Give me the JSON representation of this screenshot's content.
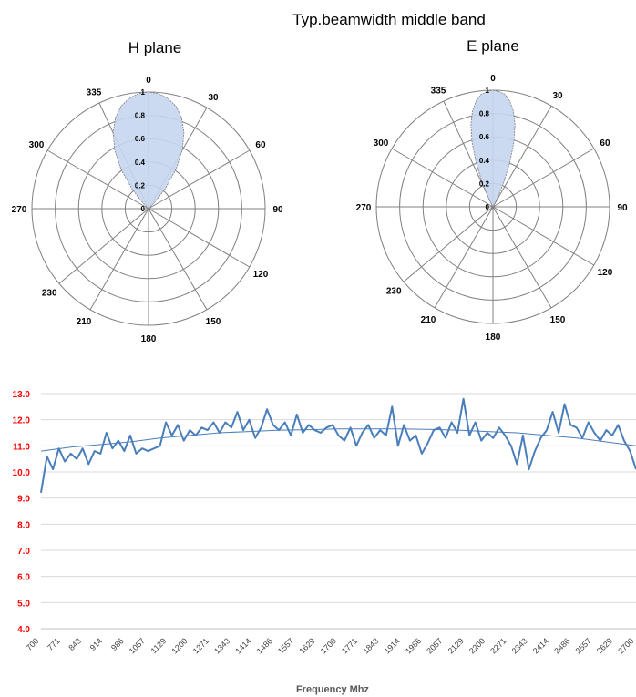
{
  "title": "Typ.beamwidth  middle band",
  "chart_data": [
    {
      "type": "polar",
      "title": "H plane",
      "angle_labels": [
        "0",
        "30",
        "60",
        "90",
        "120",
        "150",
        "180",
        "210",
        "230",
        "270",
        "300",
        "335"
      ],
      "angle_positions_deg": [
        0,
        30,
        60,
        90,
        120,
        150,
        180,
        210,
        230,
        270,
        300,
        335
      ],
      "radial_ticks": [
        "0",
        "0.2",
        "0.4",
        "0.6",
        "0.8",
        "1"
      ],
      "rlim": [
        0,
        1
      ],
      "series": [
        {
          "angle_deg": [
            -50,
            -45,
            -40,
            -35,
            -30,
            -25,
            -20,
            -15,
            -10,
            -5,
            0,
            5,
            10,
            15,
            20,
            25,
            30,
            35,
            40,
            45,
            50
          ],
          "r": [
            0.0,
            0.07,
            0.22,
            0.41,
            0.58,
            0.72,
            0.83,
            0.91,
            0.96,
            0.99,
            1.0,
            0.99,
            0.96,
            0.91,
            0.83,
            0.72,
            0.58,
            0.41,
            0.22,
            0.07,
            0.0
          ]
        }
      ],
      "colors": {
        "fill": "#c5d6ee",
        "line": "#7f7f7f"
      }
    },
    {
      "type": "polar",
      "title": "E plane",
      "angle_labels": [
        "0",
        "30",
        "60",
        "90",
        "120",
        "150",
        "180",
        "210",
        "230",
        "270",
        "300",
        "335"
      ],
      "angle_positions_deg": [
        0,
        30,
        60,
        90,
        120,
        150,
        180,
        210,
        230,
        270,
        300,
        335
      ],
      "radial_ticks": [
        "0",
        "0.2",
        "0.4",
        "0.6",
        "0.8",
        "1"
      ],
      "rlim": [
        0,
        1
      ],
      "series": [
        {
          "angle_deg": [
            -30,
            -27,
            -24,
            -21,
            -18,
            -15,
            -12,
            -9,
            -6,
            -3,
            0,
            3,
            6,
            9,
            12,
            15,
            18,
            21,
            24,
            27,
            30
          ],
          "r": [
            0.0,
            0.08,
            0.22,
            0.4,
            0.58,
            0.73,
            0.84,
            0.92,
            0.97,
            0.99,
            1.0,
            0.99,
            0.97,
            0.92,
            0.84,
            0.73,
            0.58,
            0.4,
            0.22,
            0.08,
            0.0
          ]
        }
      ],
      "colors": {
        "fill": "#c5d6ee",
        "line": "#7f7f7f"
      }
    },
    {
      "type": "line",
      "xlabel": "Frequency Mhz",
      "ylabel": "",
      "x_ticks": [
        "700",
        "771",
        "843",
        "914",
        "986",
        "1057",
        "1129",
        "1200",
        "1271",
        "1343",
        "1414",
        "1486",
        "1557",
        "1629",
        "1700",
        "1771",
        "1843",
        "1914",
        "1986",
        "2057",
        "2129",
        "2200",
        "2271",
        "2343",
        "2414",
        "2486",
        "2557",
        "2629",
        "2700"
      ],
      "y_ticks": [
        "4.0",
        "5.0",
        "6.0",
        "7.0",
        "8.0",
        "9.0",
        "10.0",
        "11.0",
        "12.0",
        "13.0"
      ],
      "ylim": [
        4.0,
        13.0
      ],
      "xlim": [
        700,
        2700
      ],
      "grid": true,
      "series": [
        {
          "kind": "measured",
          "x": [
            700,
            720,
            740,
            760,
            780,
            800,
            820,
            840,
            860,
            880,
            900,
            920,
            940,
            960,
            980,
            1000,
            1020,
            1040,
            1060,
            1080,
            1100,
            1120,
            1140,
            1160,
            1180,
            1200,
            1220,
            1240,
            1260,
            1280,
            1300,
            1320,
            1340,
            1360,
            1380,
            1400,
            1420,
            1440,
            1460,
            1480,
            1500,
            1520,
            1540,
            1560,
            1580,
            1600,
            1620,
            1640,
            1660,
            1680,
            1700,
            1720,
            1740,
            1760,
            1780,
            1800,
            1820,
            1840,
            1860,
            1880,
            1900,
            1920,
            1940,
            1960,
            1980,
            2000,
            2020,
            2040,
            2060,
            2080,
            2100,
            2120,
            2140,
            2160,
            2180,
            2200,
            2220,
            2240,
            2260,
            2280,
            2300,
            2320,
            2340,
            2360,
            2380,
            2400,
            2420,
            2440,
            2460,
            2480,
            2500,
            2520,
            2540,
            2560,
            2580,
            2600,
            2620,
            2640,
            2660,
            2680,
            2700
          ],
          "y": [
            9.2,
            10.6,
            10.1,
            10.9,
            10.4,
            10.7,
            10.5,
            10.9,
            10.3,
            10.8,
            10.7,
            11.5,
            10.9,
            11.2,
            10.8,
            11.4,
            10.7,
            10.9,
            10.8,
            10.9,
            11.0,
            11.9,
            11.4,
            11.8,
            11.2,
            11.6,
            11.4,
            11.7,
            11.6,
            11.9,
            11.5,
            11.9,
            11.7,
            12.3,
            11.6,
            12.0,
            11.3,
            11.7,
            12.4,
            11.8,
            11.6,
            11.9,
            11.4,
            12.2,
            11.5,
            11.8,
            11.6,
            11.5,
            11.7,
            11.8,
            11.4,
            11.2,
            11.7,
            11.0,
            11.5,
            11.8,
            11.3,
            11.6,
            11.4,
            12.5,
            11.0,
            11.8,
            11.2,
            11.4,
            10.7,
            11.1,
            11.6,
            11.7,
            11.3,
            11.9,
            11.5,
            12.8,
            11.4,
            11.9,
            11.2,
            11.5,
            11.3,
            11.7,
            11.4,
            11.0,
            10.3,
            11.4,
            10.1,
            10.8,
            11.3,
            11.6,
            12.3,
            11.5,
            12.6,
            11.8,
            11.7,
            11.3,
            11.9,
            11.5,
            11.2,
            11.6,
            11.4,
            11.8,
            11.2,
            10.8,
            10.1
          ]
        },
        {
          "kind": "trend",
          "x": [
            700,
            800,
            900,
            1000,
            1100,
            1200,
            1300,
            1400,
            1500,
            1600,
            1700,
            1800,
            1900,
            2000,
            2100,
            2200,
            2300,
            2400,
            2500,
            2600,
            2700
          ],
          "y": [
            10.8,
            10.95,
            11.05,
            11.15,
            11.3,
            11.4,
            11.5,
            11.55,
            11.6,
            11.62,
            11.65,
            11.65,
            11.65,
            11.63,
            11.6,
            11.55,
            11.5,
            11.4,
            11.3,
            11.15,
            11.0
          ]
        }
      ],
      "colors": {
        "line": "#4a7ebb",
        "trend": "#4a7ebb",
        "ytick": "#ff0000",
        "grid": "#d9d9d9"
      }
    }
  ]
}
